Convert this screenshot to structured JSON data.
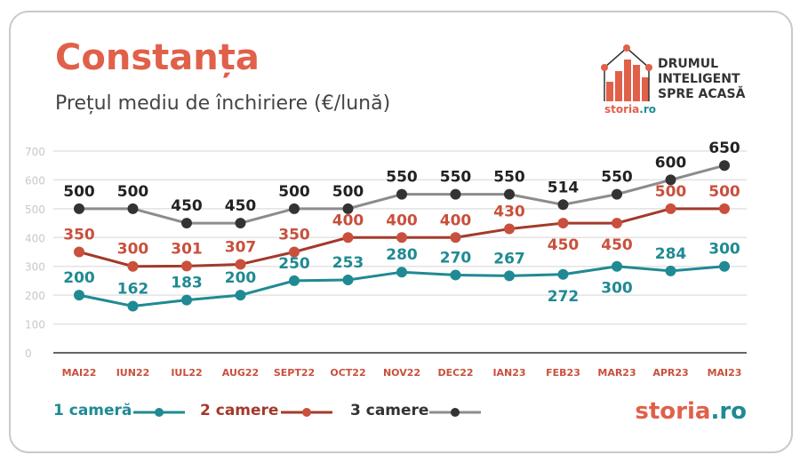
{
  "title": "Constanța",
  "subtitle": "Prețul mediu de închiriere (€/lună)",
  "logo": {
    "lines": [
      "DRUMUL",
      "INTELIGENT",
      "SPRE ACASĂ"
    ],
    "brand_a": "storia",
    ".ro": ".ro",
    "brand_b": ".ro"
  },
  "footer_brand": {
    "a": "storia",
    "b": ".ro"
  },
  "colors": {
    "s1": "#1f8a93",
    "s2": "#a33a2a",
    "s2dot": "#c9503c",
    "s3line": "#8c8c8c",
    "s3dot": "#333333",
    "accent": "#e1604a"
  },
  "chart_data": {
    "type": "line",
    "title": "Prețul mediu de închiriere (€/lună)",
    "categories": [
      "MAI22",
      "IUN22",
      "IUL22",
      "AUG22",
      "SEPT22",
      "OCT22",
      "NOV22",
      "DEC22",
      "IAN23",
      "FEB23",
      "MAR23",
      "APR23",
      "MAI23"
    ],
    "ylim": [
      0,
      700
    ],
    "yticks": [
      "0",
      "100",
      "200",
      "300",
      "400",
      "500",
      "600",
      "700"
    ],
    "grid": true,
    "legend_placement": "bottom-left",
    "series": [
      {
        "name": "1 cameră",
        "values": [
          200,
          162,
          183,
          200,
          250,
          253,
          280,
          270,
          267,
          272,
          300,
          284,
          300
        ]
      },
      {
        "name": "2 camere",
        "values": [
          350,
          300,
          301,
          307,
          350,
          400,
          400,
          400,
          430,
          450,
          450,
          500,
          500
        ]
      },
      {
        "name": "3 camere",
        "values": [
          500,
          500,
          450,
          450,
          500,
          500,
          550,
          550,
          550,
          514,
          550,
          600,
          650
        ]
      }
    ]
  }
}
